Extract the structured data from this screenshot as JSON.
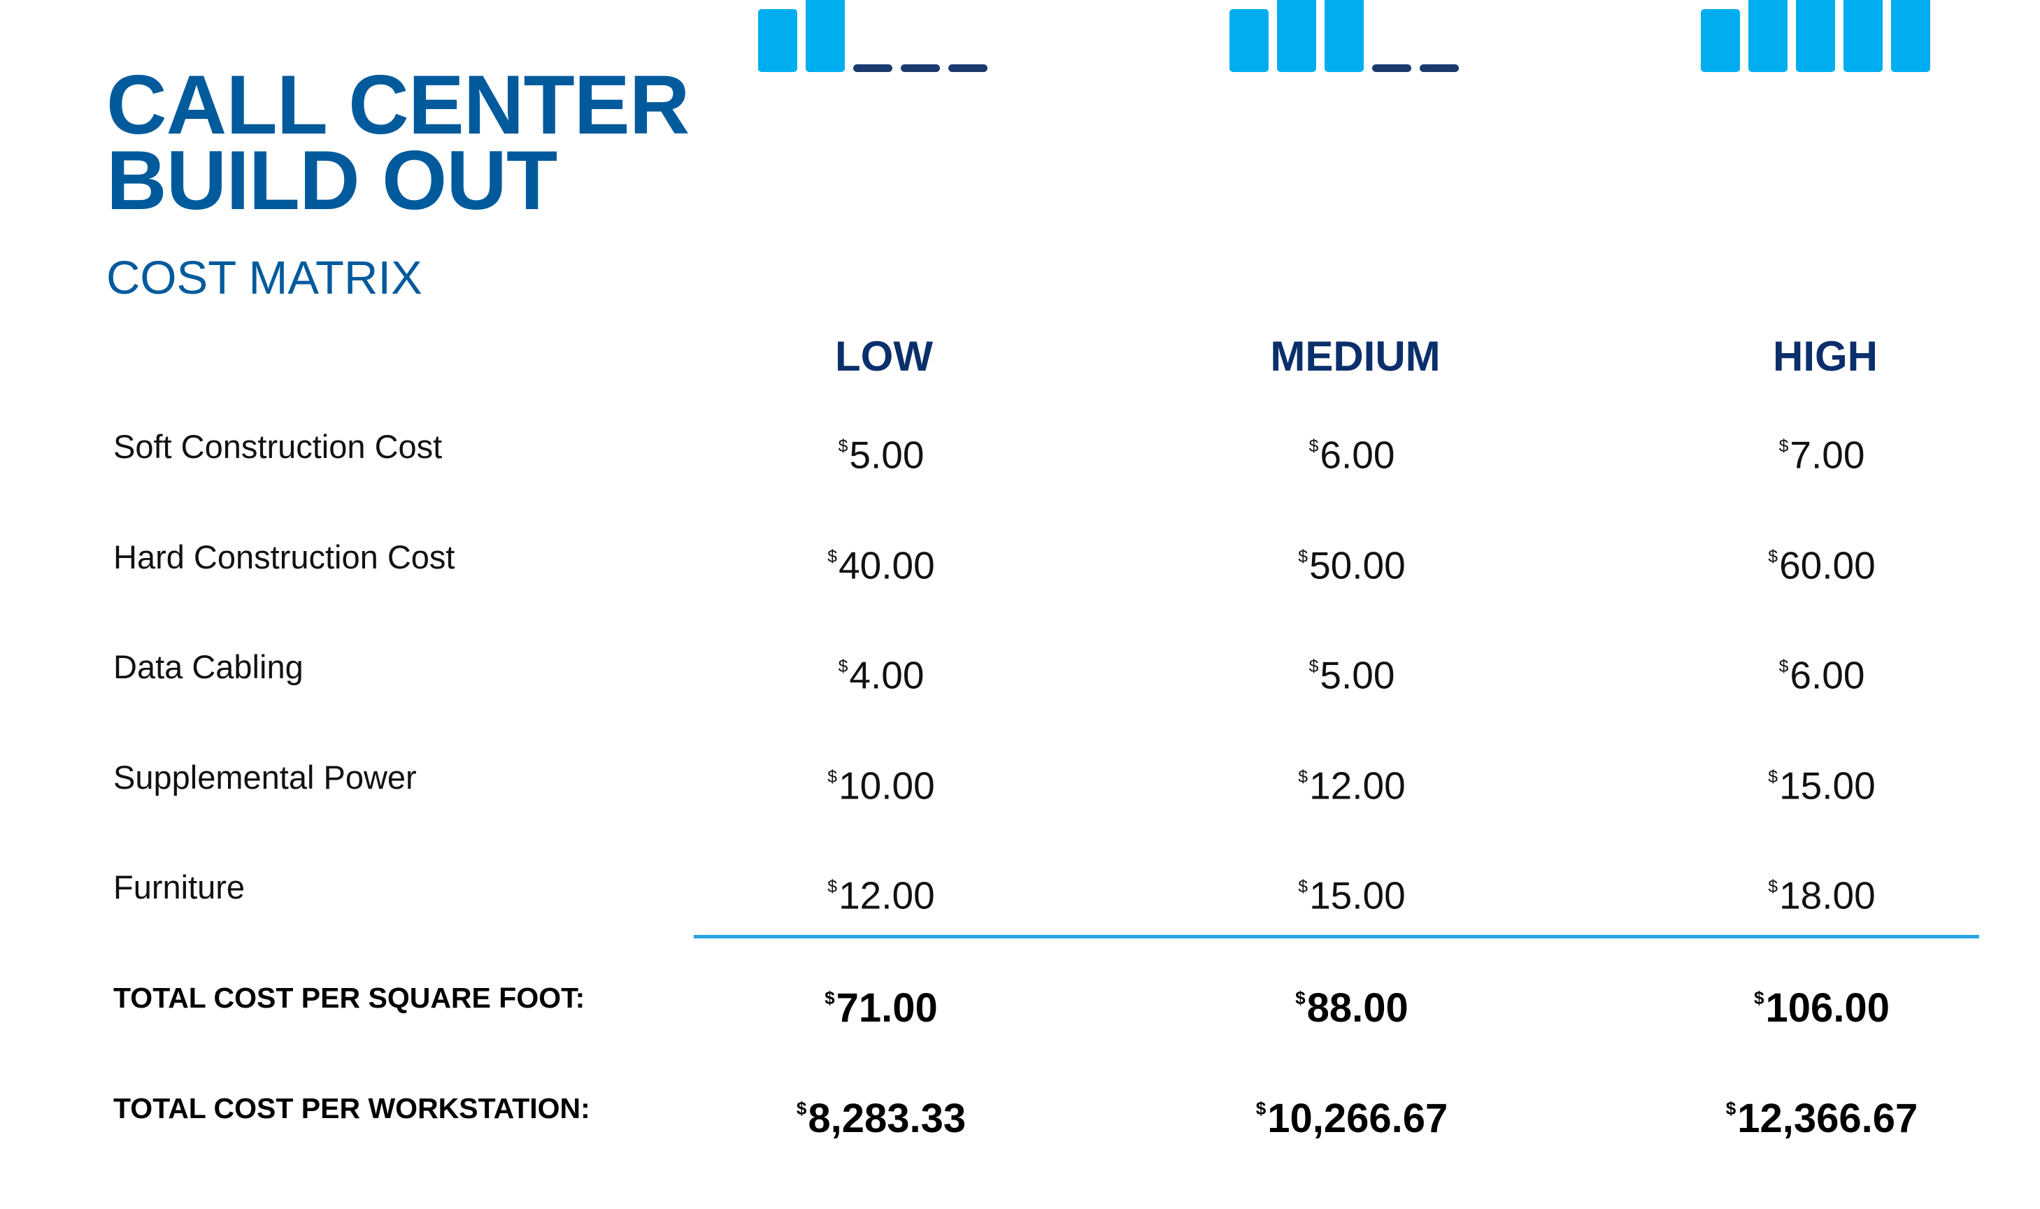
{
  "header": {
    "title_line1": "CALL CENTER",
    "title_line2": "BUILD OUT",
    "subtitle": "COST MATRIX"
  },
  "columns": [
    {
      "label": "LOW",
      "signal_level": 2,
      "signal_total": 5
    },
    {
      "label": "MEDIUM",
      "signal_level": 3,
      "signal_total": 5
    },
    {
      "label": "HIGH",
      "signal_level": 5,
      "signal_total": 5
    }
  ],
  "currency_symbol": "$",
  "rows": [
    {
      "label": "Soft Construction Cost",
      "values": [
        "5.00",
        "6.00",
        "7.00"
      ]
    },
    {
      "label": "Hard Construction Cost",
      "values": [
        "40.00",
        "50.00",
        "60.00"
      ]
    },
    {
      "label": "Data Cabling",
      "values": [
        "4.00",
        "5.00",
        "6.00"
      ]
    },
    {
      "label": "Supplemental Power",
      "values": [
        "10.00",
        "12.00",
        "15.00"
      ]
    },
    {
      "label": "Furniture",
      "values": [
        "12.00",
        "15.00",
        "18.00"
      ]
    }
  ],
  "totals": [
    {
      "label": "TOTAL COST PER SQUARE FOOT:",
      "values": [
        "71.00",
        "88.00",
        "106.00"
      ]
    },
    {
      "label": "TOTAL COST PER WORKSTATION:",
      "values": [
        "8,283.33",
        "10,266.67",
        "12,366.67"
      ]
    }
  ],
  "colors": {
    "title": "#005a9c",
    "column_header": "#0b2f6a",
    "bar_active": "#00aeef",
    "bar_inactive": "#1a3a6e",
    "divider": "#29a3e0"
  }
}
